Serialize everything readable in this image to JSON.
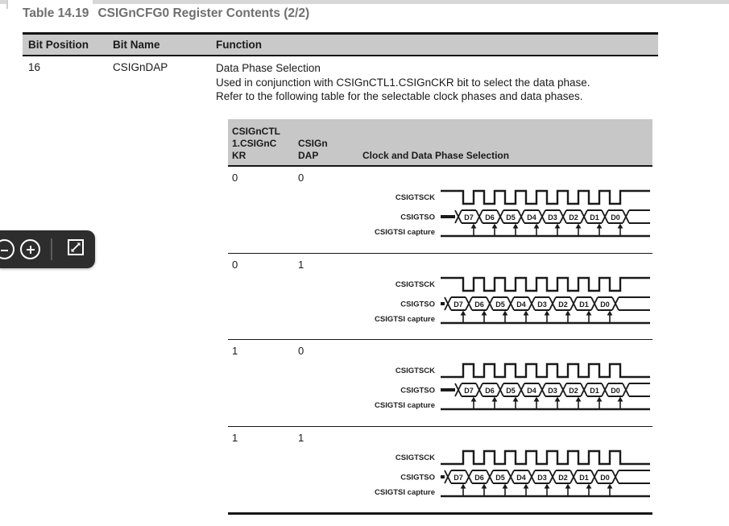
{
  "title": {
    "prefix": "Table 14.19",
    "text": "CSIGnCFG0 Register Contents (2/2)"
  },
  "outer_table": {
    "headers": [
      "Bit Position",
      "Bit Name",
      "Function"
    ],
    "row": {
      "bit_position": "16",
      "bit_name": "CSIGnDAP",
      "function_lines": [
        "Data Phase Selection",
        "Used in conjunction with CSIGnCTL1.CSIGnCKR bit to select the data phase.",
        "Refer to the following table for the selectable clock phases and data phases."
      ]
    }
  },
  "inner_table": {
    "headers": {
      "col1": "CSIGnCTL\n1.CSIGnC\nKR",
      "col2": "CSIGn\nDAP",
      "col3": "Clock and Data Phase Selection"
    },
    "rows": [
      {
        "ckr": "0",
        "dap": "0"
      },
      {
        "ckr": "0",
        "dap": "1"
      },
      {
        "ckr": "1",
        "dap": "0"
      },
      {
        "ckr": "1",
        "dap": "1"
      }
    ]
  },
  "diagram": {
    "signal_labels": [
      "CSIGTSCK",
      "CSIGTSO",
      "CSIGTSI capture"
    ],
    "data_labels": [
      "D7",
      "D6",
      "D5",
      "D4",
      "D3",
      "D2",
      "D1",
      "D0"
    ]
  },
  "toolbar": {
    "buttons": [
      "zoom-out",
      "zoom-in",
      "fit-page"
    ]
  },
  "colors": {
    "table_header_bg": "#c9c9c9",
    "line": "#1a1a1a",
    "title_text": "#6f6f6f",
    "toolbar_bg": "#2d2d2d",
    "top_strip": "#d7d7d7"
  }
}
